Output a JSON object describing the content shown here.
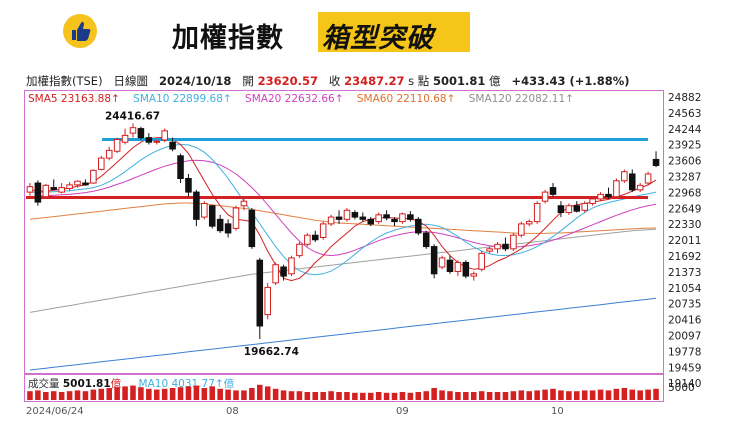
{
  "header": {
    "title": "加權指數",
    "title_highlight": "箱型突破",
    "badge_icon": "thumbs-up-icon",
    "badge_color": "#f6c21c",
    "highlight_color": "#f5c518"
  },
  "info_bar": {
    "name": "加權指數(TSE)",
    "period": "日線圖",
    "date": "2024/10/18",
    "open_label": "開",
    "open": "23620.57",
    "close_label": "收",
    "close": "23487.27",
    "unit": "s 點",
    "amount": "5001.81",
    "amount_unit": "億",
    "change": "+433.43 (+1.88%)"
  },
  "ma_legend": [
    {
      "text": "SMA5 23163.88↑",
      "color": "#d42020"
    },
    {
      "text": "SMA10 22899.68↑",
      "color": "#3fb0e0"
    },
    {
      "text": "SMA20 22632.66↑",
      "color": "#d040c0"
    },
    {
      "text": "SMA60 22110.68↑",
      "color": "#e07030"
    },
    {
      "text": "SMA120 22082.11↑",
      "color": "#909090"
    }
  ],
  "volume_legend": {
    "label": "成交量 ",
    "value": "5001.81",
    "unit": "億",
    "ma": "MA10 4031.77↑億"
  },
  "chart_data": {
    "type": "candlestick",
    "title": "加權指數 箱型突破",
    "y_ticks": [
      "24882",
      "24563",
      "24244",
      "23925",
      "23606",
      "23287",
      "22968",
      "22649",
      "22330",
      "22011",
      "21692",
      "21373",
      "21054",
      "20735",
      "20416",
      "20097",
      "19778",
      "19459",
      "19140"
    ],
    "ylim": [
      18980,
      25040
    ],
    "volume_tick": "5000",
    "x_ticks": [
      "2024/06/24",
      "08",
      "09",
      "10"
    ],
    "annotations": [
      {
        "text": "24416.67",
        "role": "high"
      },
      {
        "text": "19662.74",
        "role": "low"
      }
    ],
    "reference_lines": [
      {
        "value": 24060,
        "color": "#1e9fd8",
        "x_start": 0.12
      },
      {
        "value": 22780,
        "color": "#d42020",
        "x_start": 0.0
      }
    ],
    "colors": {
      "up": "#d42020",
      "down": "#111111",
      "volume": "#d42020"
    },
    "candles": [
      {
        "o": 22900,
        "h": 23100,
        "l": 22820,
        "c": 23020
      },
      {
        "o": 23100,
        "h": 23160,
        "l": 22600,
        "c": 22680
      },
      {
        "o": 22800,
        "h": 23080,
        "l": 22760,
        "c": 23050
      },
      {
        "o": 23000,
        "h": 23180,
        "l": 22940,
        "c": 22960
      },
      {
        "o": 22900,
        "h": 23100,
        "l": 22870,
        "c": 23000
      },
      {
        "o": 22980,
        "h": 23120,
        "l": 22920,
        "c": 23060
      },
      {
        "o": 23060,
        "h": 23160,
        "l": 23000,
        "c": 23140
      },
      {
        "o": 23100,
        "h": 23180,
        "l": 23040,
        "c": 23060
      },
      {
        "o": 23100,
        "h": 23400,
        "l": 23080,
        "c": 23380
      },
      {
        "o": 23400,
        "h": 23700,
        "l": 23380,
        "c": 23650
      },
      {
        "o": 23650,
        "h": 23900,
        "l": 23600,
        "c": 23820
      },
      {
        "o": 23800,
        "h": 24100,
        "l": 23760,
        "c": 24060
      },
      {
        "o": 24000,
        "h": 24300,
        "l": 23950,
        "c": 24150
      },
      {
        "o": 24200,
        "h": 24416,
        "l": 24100,
        "c": 24320
      },
      {
        "o": 24300,
        "h": 24340,
        "l": 24060,
        "c": 24100
      },
      {
        "o": 24100,
        "h": 24200,
        "l": 23950,
        "c": 24000
      },
      {
        "o": 24000,
        "h": 24060,
        "l": 23950,
        "c": 24020
      },
      {
        "o": 24050,
        "h": 24300,
        "l": 24000,
        "c": 24250
      },
      {
        "o": 24000,
        "h": 24100,
        "l": 23800,
        "c": 23850
      },
      {
        "o": 23700,
        "h": 23750,
        "l": 23100,
        "c": 23200
      },
      {
        "o": 23200,
        "h": 23300,
        "l": 22800,
        "c": 22900
      },
      {
        "o": 22900,
        "h": 22950,
        "l": 22150,
        "c": 22300
      },
      {
        "o": 22350,
        "h": 22700,
        "l": 22300,
        "c": 22650
      },
      {
        "o": 22600,
        "h": 22620,
        "l": 22100,
        "c": 22150
      },
      {
        "o": 22300,
        "h": 22400,
        "l": 22000,
        "c": 22050
      },
      {
        "o": 22200,
        "h": 22300,
        "l": 21900,
        "c": 22000
      },
      {
        "o": 22100,
        "h": 22600,
        "l": 22050,
        "c": 22550
      },
      {
        "o": 22600,
        "h": 22800,
        "l": 22500,
        "c": 22700
      },
      {
        "o": 22500,
        "h": 22550,
        "l": 21650,
        "c": 21700
      },
      {
        "o": 21400,
        "h": 21450,
        "l": 19662,
        "c": 19950
      },
      {
        "o": 20200,
        "h": 20900,
        "l": 20100,
        "c": 20800
      },
      {
        "o": 20900,
        "h": 21350,
        "l": 20850,
        "c": 21300
      },
      {
        "o": 21250,
        "h": 21300,
        "l": 20950,
        "c": 21050
      },
      {
        "o": 21100,
        "h": 21500,
        "l": 21050,
        "c": 21450
      },
      {
        "o": 21500,
        "h": 21800,
        "l": 21450,
        "c": 21750
      },
      {
        "o": 21750,
        "h": 22000,
        "l": 21700,
        "c": 21950
      },
      {
        "o": 21950,
        "h": 22050,
        "l": 21800,
        "c": 21850
      },
      {
        "o": 21900,
        "h": 22250,
        "l": 21850,
        "c": 22200
      },
      {
        "o": 22200,
        "h": 22400,
        "l": 22150,
        "c": 22350
      },
      {
        "o": 22350,
        "h": 22500,
        "l": 22200,
        "c": 22300
      },
      {
        "o": 22300,
        "h": 22550,
        "l": 22250,
        "c": 22500
      },
      {
        "o": 22450,
        "h": 22500,
        "l": 22300,
        "c": 22350
      },
      {
        "o": 22350,
        "h": 22450,
        "l": 22250,
        "c": 22300
      },
      {
        "o": 22300,
        "h": 22350,
        "l": 22150,
        "c": 22200
      },
      {
        "o": 22250,
        "h": 22450,
        "l": 22200,
        "c": 22400
      },
      {
        "o": 22400,
        "h": 22500,
        "l": 22280,
        "c": 22330
      },
      {
        "o": 22300,
        "h": 22350,
        "l": 22150,
        "c": 22250
      },
      {
        "o": 22250,
        "h": 22450,
        "l": 22200,
        "c": 22420
      },
      {
        "o": 22400,
        "h": 22480,
        "l": 22250,
        "c": 22300
      },
      {
        "o": 22300,
        "h": 22350,
        "l": 21950,
        "c": 22000
      },
      {
        "o": 22000,
        "h": 22050,
        "l": 21650,
        "c": 21700
      },
      {
        "o": 21700,
        "h": 21750,
        "l": 21000,
        "c": 21100
      },
      {
        "o": 21250,
        "h": 21500,
        "l": 21200,
        "c": 21450
      },
      {
        "o": 21400,
        "h": 21500,
        "l": 21100,
        "c": 21150
      },
      {
        "o": 21150,
        "h": 21400,
        "l": 21050,
        "c": 21350
      },
      {
        "o": 21350,
        "h": 21400,
        "l": 21000,
        "c": 21050
      },
      {
        "o": 21050,
        "h": 21150,
        "l": 20950,
        "c": 21100
      },
      {
        "o": 21200,
        "h": 21600,
        "l": 21150,
        "c": 21550
      },
      {
        "o": 21600,
        "h": 21700,
        "l": 21550,
        "c": 21650
      },
      {
        "o": 21650,
        "h": 21800,
        "l": 21550,
        "c": 21750
      },
      {
        "o": 21750,
        "h": 21900,
        "l": 21600,
        "c": 21650
      },
      {
        "o": 21650,
        "h": 22000,
        "l": 21600,
        "c": 21950
      },
      {
        "o": 21950,
        "h": 22250,
        "l": 21900,
        "c": 22200
      },
      {
        "o": 22200,
        "h": 22300,
        "l": 22150,
        "c": 22250
      },
      {
        "o": 22250,
        "h": 22700,
        "l": 22200,
        "c": 22650
      },
      {
        "o": 22700,
        "h": 22950,
        "l": 22650,
        "c": 22900
      },
      {
        "o": 23000,
        "h": 23100,
        "l": 22800,
        "c": 22850
      },
      {
        "o": 22600,
        "h": 22700,
        "l": 22350,
        "c": 22450
      },
      {
        "o": 22450,
        "h": 22650,
        "l": 22400,
        "c": 22600
      },
      {
        "o": 22600,
        "h": 22700,
        "l": 22450,
        "c": 22480
      },
      {
        "o": 22500,
        "h": 22700,
        "l": 22450,
        "c": 22650
      },
      {
        "o": 22650,
        "h": 22800,
        "l": 22600,
        "c": 22750
      },
      {
        "o": 22750,
        "h": 22900,
        "l": 22700,
        "c": 22850
      },
      {
        "o": 22850,
        "h": 23000,
        "l": 22750,
        "c": 22800
      },
      {
        "o": 22800,
        "h": 23200,
        "l": 22780,
        "c": 23150
      },
      {
        "o": 23150,
        "h": 23400,
        "l": 23100,
        "c": 23350
      },
      {
        "o": 23300,
        "h": 23400,
        "l": 22900,
        "c": 22950
      },
      {
        "o": 22950,
        "h": 23100,
        "l": 22900,
        "c": 23050
      },
      {
        "o": 23100,
        "h": 23350,
        "l": 23050,
        "c": 23300
      },
      {
        "o": 23620,
        "h": 23800,
        "l": 23450,
        "c": 23487
      }
    ],
    "sma5": [
      22950,
      22930,
      22920,
      22940,
      22960,
      22990,
      23030,
      23060,
      23130,
      23250,
      23400,
      23560,
      23720,
      23880,
      24000,
      24080,
      24100,
      24110,
      24060,
      23950,
      23750,
      23450,
      23150,
      22850,
      22600,
      22400,
      22300,
      22280,
      22250,
      21950,
      21600,
      21300,
      21000,
      20950,
      21000,
      21150,
      21350,
      21500,
      21700,
      21850,
      22000,
      22150,
      22250,
      22300,
      22330,
      22340,
      22330,
      22320,
      22310,
      22260,
      22150,
      21950,
      21700,
      21500,
      21350,
      21250,
      21200,
      21220,
      21280,
      21380,
      21450,
      21550,
      21650,
      21780,
      21930,
      22100,
      22280,
      22450,
      22570,
      22620,
      22650,
      22680,
      22710,
      22740,
      22790,
      22850,
      22920,
      22990,
      23060,
      23164
    ],
    "sma10": [
      22900,
      22900,
      22900,
      22910,
      22920,
      22930,
      22950,
      22970,
      23000,
      23050,
      23130,
      23230,
      23350,
      23480,
      23610,
      23720,
      23810,
      23880,
      23930,
      23950,
      23940,
      23880,
      23780,
      23620,
      23420,
      23200,
      22950,
      22700,
      22450,
      22200,
      21950,
      21700,
      21480,
      21300,
      21170,
      21100,
      21080,
      21100,
      21160,
      21260,
      21390,
      21530,
      21670,
      21800,
      21910,
      22000,
      22060,
      22110,
      22150,
      22180,
      22190,
      22170,
      22120,
      22030,
      21920,
      21800,
      21690,
      21600,
      21540,
      21510,
      21500,
      21520,
      21560,
      21620,
      21700,
      21800,
      21920,
      22050,
      22190,
      22330,
      22450,
      22550,
      22620,
      22670,
      22710,
      22750,
      22790,
      22830,
      22860,
      22900
    ],
    "sma20": [
      22800,
      22810,
      22820,
      22830,
      22840,
      22850,
      22870,
      22890,
      22920,
      22960,
      23010,
      23070,
      23130,
      23200,
      23270,
      23340,
      23410,
      23470,
      23520,
      23560,
      23590,
      23600,
      23590,
      23560,
      23500,
      23410,
      23300,
      23160,
      23000,
      22820,
      22620,
      22410,
      22200,
      22000,
      21820,
      21680,
      21580,
      21520,
      21500,
      21520,
      21560,
      21620,
      21690,
      21760,
      21830,
      21890,
      21940,
      21980,
      22010,
      22030,
      22030,
      22010,
      21980,
      21940,
      21890,
      21840,
      21790,
      21750,
      21720,
      21700,
      21690,
      21690,
      21700,
      21720,
      21750,
      21790,
      21840,
      21900,
      21970,
      22040,
      22110,
      22180,
      22250,
      22320,
      22390,
      22450,
      22510,
      22560,
      22600,
      22633
    ],
    "sma60": [
      22300,
      22320,
      22340,
      22360,
      22380,
      22400,
      22420,
      22440,
      22460,
      22480,
      22500,
      22520,
      22540,
      22560,
      22580,
      22600,
      22620,
      22640,
      22650,
      22660,
      22660,
      22650,
      22640,
      22620,
      22600,
      22580,
      22560,
      22540,
      22520,
      22490,
      22460,
      22430,
      22400,
      22370,
      22340,
      22310,
      22280,
      22260,
      22240,
      22220,
      22210,
      22200,
      22190,
      22180,
      22170,
      22160,
      22150,
      22140,
      22130,
      22120,
      22110,
      22100,
      22090,
      22080,
      22070,
      22060,
      22050,
      22040,
      22030,
      22020,
      22010,
      22000,
      21990,
      21990,
      21990,
      21990,
      22000,
      22000,
      22010,
      22020,
      22030,
      22040,
      22050,
      22060,
      22070,
      22080,
      22090,
      22100,
      22105,
      22111
    ],
    "sma120": [
      20250,
      20280,
      20310,
      20340,
      20370,
      20400,
      20430,
      20460,
      20490,
      20520,
      20550,
      20580,
      20610,
      20640,
      20670,
      20700,
      20730,
      20760,
      20790,
      20820,
      20850,
      20880,
      20910,
      20940,
      20970,
      21000,
      21030,
      21060,
      21090,
      21110,
      21130,
      21150,
      21170,
      21190,
      21210,
      21230,
      21250,
      21270,
      21290,
      21310,
      21330,
      21350,
      21370,
      21390,
      21410,
      21430,
      21450,
      21470,
      21490,
      21510,
      21530,
      21550,
      21570,
      21590,
      21610,
      21630,
      21650,
      21670,
      21690,
      21710,
      21730,
      21750,
      21770,
      21790,
      21810,
      21830,
      21850,
      21870,
      21890,
      21910,
      21930,
      21950,
      21970,
      21990,
      22010,
      22030,
      22050,
      22060,
      22070,
      22082
    ],
    "long_ma": [
      18980,
      19000,
      19020,
      19040,
      19060,
      19080,
      19100,
      19120,
      19140,
      19160,
      19180,
      19200,
      19220,
      19240,
      19260,
      19280,
      19300,
      19320,
      19340,
      19360,
      19380,
      19400,
      19420,
      19440,
      19460,
      19480,
      19500,
      19520,
      19540,
      19560,
      19580,
      19600,
      19620,
      19640,
      19660,
      19680,
      19700,
      19720,
      19740,
      19760,
      19780,
      19800,
      19820,
      19840,
      19860,
      19880,
      19900,
      19920,
      19940,
      19960,
      19980,
      20000,
      20020,
      20040,
      20060,
      20080,
      20100,
      20120,
      20140,
      20160,
      20180,
      20200,
      20220,
      20240,
      20260,
      20280,
      20300,
      20320,
      20340,
      20360,
      20380,
      20400,
      20420,
      20440,
      20460,
      20480,
      20500,
      20520,
      20540,
      20560
    ],
    "volume": [
      0.55,
      0.6,
      0.5,
      0.55,
      0.5,
      0.55,
      0.6,
      0.55,
      0.65,
      0.7,
      0.75,
      0.8,
      0.85,
      0.9,
      0.8,
      0.7,
      0.65,
      0.7,
      0.75,
      0.8,
      0.85,
      0.9,
      0.75,
      0.85,
      0.7,
      0.65,
      0.6,
      0.6,
      0.75,
      0.95,
      0.85,
      0.7,
      0.6,
      0.55,
      0.55,
      0.5,
      0.5,
      0.5,
      0.55,
      0.5,
      0.5,
      0.45,
      0.45,
      0.45,
      0.5,
      0.45,
      0.45,
      0.5,
      0.45,
      0.5,
      0.55,
      0.75,
      0.6,
      0.55,
      0.5,
      0.5,
      0.5,
      0.55,
      0.5,
      0.5,
      0.5,
      0.55,
      0.6,
      0.55,
      0.6,
      0.65,
      0.7,
      0.6,
      0.55,
      0.55,
      0.6,
      0.6,
      0.65,
      0.6,
      0.7,
      0.75,
      0.65,
      0.6,
      0.65,
      0.7
    ]
  }
}
